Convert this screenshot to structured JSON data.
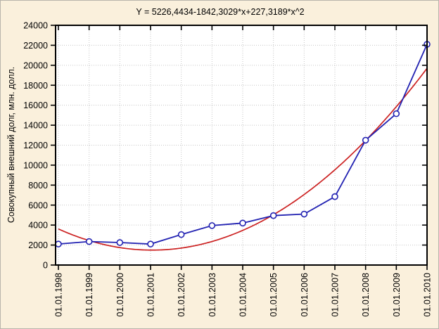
{
  "window": {
    "background_color": "#faf0dc",
    "plot_background_color": "#ffffff",
    "grid_color": "#c6c6c6",
    "frame_color": "#000000"
  },
  "chart_data": {
    "type": "line",
    "title": "Y = 5226,4434-1842,3029*x+227,3189*x^2",
    "ylabel": "Совокупный внешний долг, млн. долл.",
    "xlabel": "",
    "categories": [
      "01.01.1998",
      "01.01.1999",
      "01.01.2000",
      "01.01.2001",
      "01.01.2002",
      "01.01.2003",
      "01.01.2004",
      "01.01.2005",
      "01.01.2006",
      "01.01.2007",
      "01.01.2008",
      "01.01.2009",
      "01.01.2010"
    ],
    "series": [
      {
        "name": "observed-debt",
        "color": "#2222b2",
        "marker": "open-circle",
        "values": [
          2100,
          2350,
          2250,
          2100,
          3050,
          3950,
          4200,
          4950,
          5100,
          6850,
          12500,
          15150,
          22100
        ]
      },
      {
        "name": "quadratic-fit",
        "color": "#cc2222",
        "marker": "none",
        "fit_coefficients": {
          "intercept": 5226.4434,
          "x": -1842.3029,
          "x2": 227.3189
        },
        "x_index_range": [
          1,
          13
        ]
      }
    ],
    "ylim": [
      0,
      24000
    ],
    "yticks": [
      0,
      2000,
      4000,
      6000,
      8000,
      10000,
      12000,
      14000,
      16000,
      18000,
      20000,
      22000,
      24000
    ],
    "grid": "dotted",
    "legend": "none"
  }
}
